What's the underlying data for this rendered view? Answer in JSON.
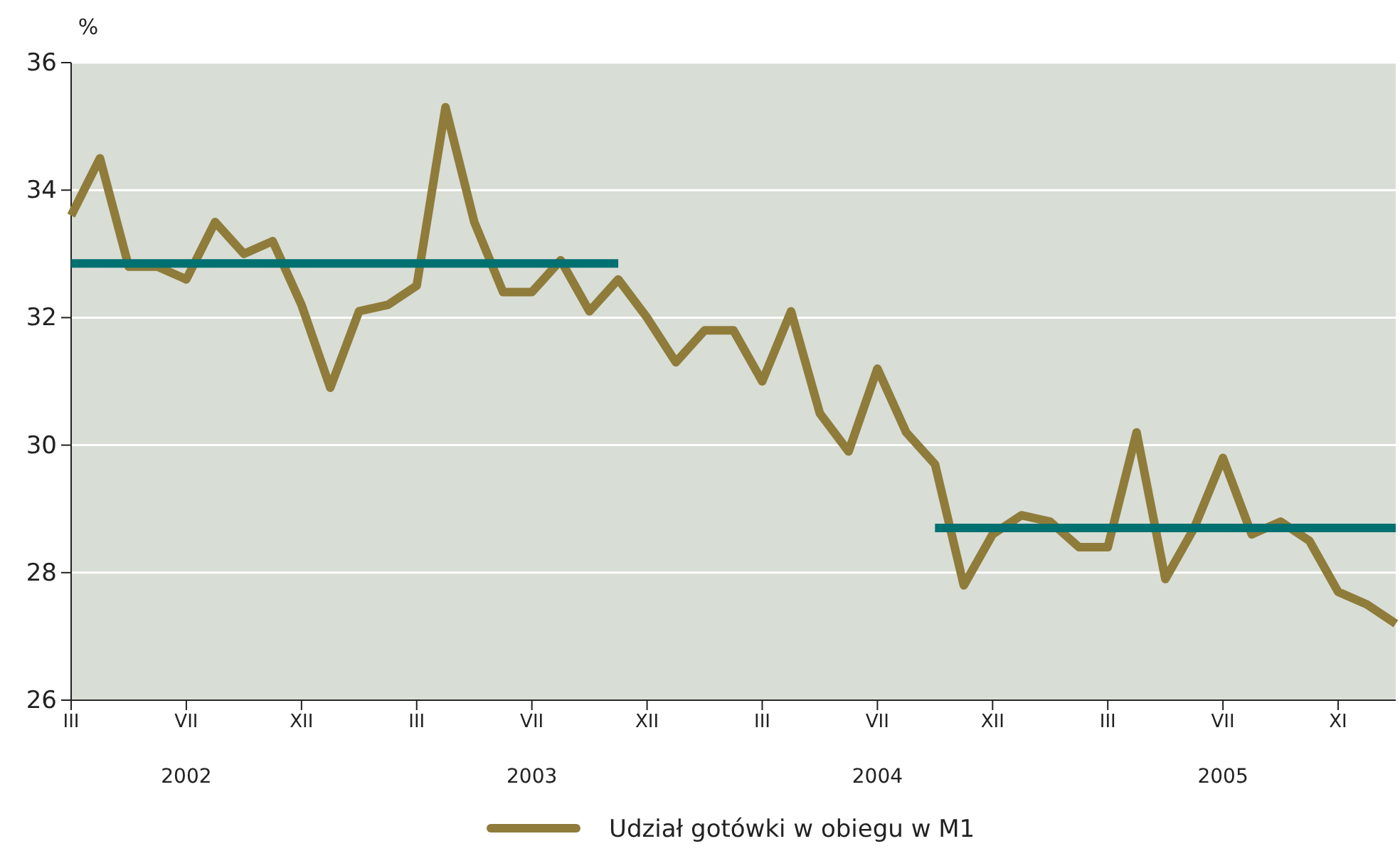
{
  "chart_data": {
    "type": "line",
    "ylabel": "%",
    "ylim": [
      26,
      36
    ],
    "yticks": [
      26,
      28,
      30,
      32,
      34,
      36
    ],
    "categories": [
      "III",
      null,
      null,
      null,
      "VII",
      null,
      null,
      null,
      "XII",
      null,
      null,
      null,
      "III",
      null,
      null,
      null,
      "VII",
      null,
      null,
      null,
      "XII",
      null,
      null,
      null,
      "III",
      null,
      null,
      null,
      "VII",
      null,
      null,
      null,
      "XII",
      null,
      null,
      null,
      "III",
      null,
      null,
      null,
      "VII",
      null,
      null,
      null,
      "XI",
      null,
      null
    ],
    "annotations": [
      "2002",
      "2003",
      "2004",
      "2005"
    ],
    "grid": "y",
    "legend": "bottom",
    "series": [
      {
        "name": "Udział gotówki w obiegu w M1",
        "color": "#8f7c3a",
        "values": [
          33.6,
          34.5,
          32.8,
          32.8,
          32.6,
          33.5,
          33.0,
          33.2,
          32.2,
          30.9,
          32.1,
          32.2,
          32.5,
          35.3,
          33.5,
          32.4,
          32.4,
          32.9,
          32.1,
          32.6,
          32.0,
          31.3,
          31.8,
          31.8,
          31.0,
          32.1,
          30.5,
          29.9,
          31.2,
          30.2,
          29.7,
          27.8,
          28.6,
          28.9,
          28.8,
          28.4,
          28.4,
          30.2,
          27.9,
          28.7,
          29.8,
          28.6,
          28.8,
          28.5,
          27.7,
          27.5,
          27.2
        ]
      },
      {
        "color": "#007070",
        "values": [
          32.85,
          32.85,
          32.85,
          32.85,
          32.85,
          32.85,
          32.85,
          32.85,
          32.85,
          32.85,
          32.85,
          32.85,
          32.85,
          32.85,
          32.85,
          32.85,
          32.85,
          32.85,
          32.85,
          32.85,
          null,
          null,
          null,
          null,
          null,
          null,
          null,
          null,
          null,
          null,
          null,
          null,
          null,
          null,
          null,
          null,
          null,
          null,
          null,
          null,
          null,
          null,
          null,
          null,
          null,
          null,
          null
        ]
      },
      {
        "color": "#007070",
        "values": [
          null,
          null,
          null,
          null,
          null,
          null,
          null,
          null,
          null,
          null,
          null,
          null,
          null,
          null,
          null,
          null,
          null,
          null,
          null,
          null,
          null,
          null,
          null,
          null,
          null,
          null,
          null,
          null,
          null,
          null,
          28.7,
          28.7,
          28.7,
          28.7,
          28.7,
          28.7,
          28.7,
          28.7,
          28.7,
          28.7,
          28.7,
          28.7,
          28.7,
          28.7,
          28.7,
          28.7,
          28.7
        ]
      }
    ]
  }
}
